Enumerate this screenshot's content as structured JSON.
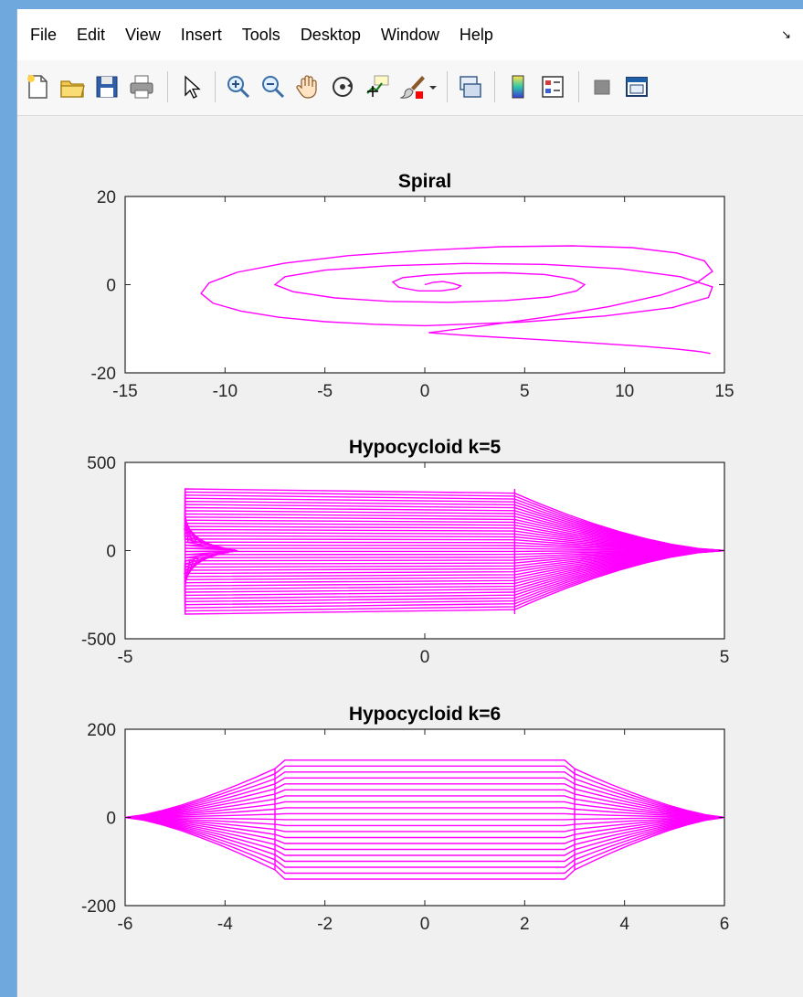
{
  "menu": [
    "File",
    "Edit",
    "View",
    "Insert",
    "Tools",
    "Desktop",
    "Window",
    "Help"
  ],
  "colors": {
    "line": "#ff00ff",
    "axes": "#262626"
  },
  "toolbar_icons": [
    "new-figure-icon",
    "open-file-icon",
    "save-icon",
    "print-icon",
    "select-arrow-icon",
    "zoom-in-icon",
    "zoom-out-icon",
    "pan-hand-icon",
    "rotate-3d-icon",
    "data-cursor-icon",
    "brush-icon",
    "brush-dropdown-icon",
    "link-plot-icon",
    "colorbar-icon",
    "legend-icon",
    "hide-plot-tools-icon",
    "show-plot-tools-icon"
  ],
  "chart_data": [
    {
      "type": "line",
      "title": "Spiral",
      "xlim": [
        -15,
        15
      ],
      "ylim": [
        -20,
        20
      ],
      "xticks": [
        -15,
        -10,
        -5,
        0,
        5,
        10,
        15
      ],
      "yticks": [
        -20,
        0,
        20
      ],
      "grid": false,
      "series": [
        {
          "x": [
            0,
            0.4,
            0.9,
            1.4,
            1.8,
            1.6,
            0.8,
            -0.3,
            -1.3,
            -1.6,
            -1.1,
            0.2,
            2.0,
            4.0,
            6.0,
            7.4,
            8.0,
            7.6,
            6.2,
            4.0,
            1.2,
            -1.8,
            -4.5,
            -6.6,
            -7.5,
            -7.0,
            -5.0,
            -1.8,
            2.0,
            6.0,
            9.8,
            12.8,
            14.4,
            14.2,
            12.4,
            9.0,
            4.8,
            0.0
          ],
          "y": [
            0,
            0.5,
            0.7,
            0.3,
            -0.3,
            -0.9,
            -1.4,
            -1.4,
            -0.6,
            0.6,
            1.6,
            2.2,
            2.6,
            2.7,
            2.3,
            1.3,
            0.0,
            -1.4,
            -2.8,
            -3.6,
            -4.0,
            -3.8,
            -3.0,
            -1.6,
            0.0,
            1.8,
            3.3,
            4.3,
            4.8,
            4.6,
            3.6,
            1.8,
            -0.5,
            -2.9,
            -5.2,
            -7.1,
            -8.5,
            -9.3
          ]
        },
        {
          "x": [
            0.0,
            -2.5,
            -5.0,
            -7.3,
            -9.2,
            -10.6,
            -11.2,
            -10.8,
            -9.4,
            -7.0,
            -3.8,
            0.0,
            3.8,
            7.4,
            10.4,
            12.6,
            14.0,
            14.4,
            13.6,
            11.8,
            9.2,
            6.0,
            2.8,
            0.2
          ],
          "y": [
            -9.3,
            -9.0,
            -8.4,
            -7.4,
            -6.0,
            -4.2,
            -2.0,
            0.4,
            2.8,
            4.9,
            6.6,
            7.8,
            8.6,
            8.8,
            8.4,
            7.2,
            5.4,
            3.0,
            0.4,
            -2.4,
            -5.0,
            -7.4,
            -9.4,
            -10.9
          ]
        },
        {
          "x": [
            0.2,
            2.4,
            4.8,
            7.0,
            9.0,
            11.0,
            12.6,
            13.8,
            14.3
          ],
          "y": [
            -10.9,
            -11.6,
            -12.2,
            -12.8,
            -13.4,
            -14.0,
            -14.6,
            -15.2,
            -15.6
          ]
        }
      ]
    },
    {
      "type": "line",
      "title": "Hypocycloid k=5",
      "xlim": [
        -5,
        5
      ],
      "ylim": [
        -500,
        500
      ],
      "xticks": [
        -5,
        0,
        5
      ],
      "yticks": [
        -500,
        0,
        500
      ],
      "grid": false,
      "band": {
        "x_left": -4.0,
        "x_step": 1.5,
        "x_tip": 5.0,
        "y_top": 350,
        "y_bottom": -360,
        "line_count": 40
      }
    },
    {
      "type": "line",
      "title": "Hypocycloid k=6",
      "xlim": [
        -6,
        6
      ],
      "ylim": [
        -200,
        200
      ],
      "xticks": [
        -6,
        -4,
        -2,
        0,
        2,
        4,
        6
      ],
      "yticks": [
        -200,
        0,
        200
      ],
      "grid": false,
      "band": {
        "x_left": -6.0,
        "x_step_left": -3.0,
        "x_step_right": 3.0,
        "x_tip": 6.0,
        "y_top": 130,
        "y_bottom": -140,
        "line_count": 20
      }
    }
  ]
}
